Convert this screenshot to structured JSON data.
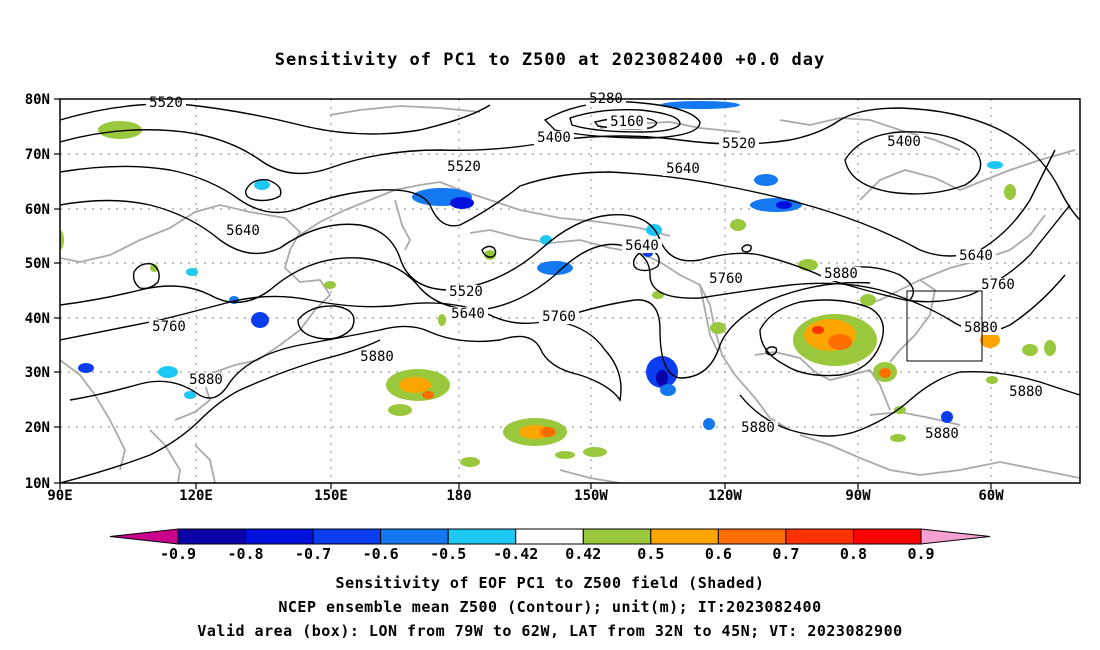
{
  "title": "Sensitivity of PC1 to Z500 at 2023082400 +0.0 day",
  "lat_labels": [
    "80N",
    "70N",
    "60N",
    "50N",
    "40N",
    "30N",
    "20N",
    "10N"
  ],
  "lon_labels": [
    "90E",
    "120E",
    "150E",
    "180",
    "150W",
    "120W",
    "90W",
    "60W"
  ],
  "colorbar": {
    "ticks": [
      "-0.9",
      "-0.8",
      "-0.7",
      "-0.6",
      "-0.5",
      "-0.42",
      "0.42",
      "0.5",
      "0.6",
      "0.7",
      "0.8",
      "0.9"
    ],
    "colors": [
      "#c8008c",
      "#0a00a8",
      "#0010dc",
      "#0a3cf0",
      "#1478f0",
      "#1ec8f5",
      "#ffffff",
      "#99c83c",
      "#ffa500",
      "#ff6e00",
      "#ff3200",
      "#ff0000",
      "#f5a0d2"
    ]
  },
  "contour_labels": [
    "5520",
    "5280",
    "5160",
    "5400",
    "5520",
    "5400",
    "5520",
    "5640",
    "5640",
    "5520",
    "5640",
    "5760",
    "5880",
    "5640",
    "5760",
    "5880",
    "5760",
    "5640",
    "5760",
    "5880",
    "5880",
    "5880",
    "5880",
    "5880"
  ],
  "captions": [
    "Sensitivity of EOF PC1 to Z500 field (Shaded)",
    "NCEP ensemble mean Z500 (Contour); unit(m); IT:2023082400",
    "Valid area (box): LON from 79W to 62W, LAT from 32N to 45N; VT: 2023082900"
  ],
  "colors": {
    "contour": "#000000",
    "coast": "#aaaaaa",
    "grid": "#aaaaaa"
  }
}
